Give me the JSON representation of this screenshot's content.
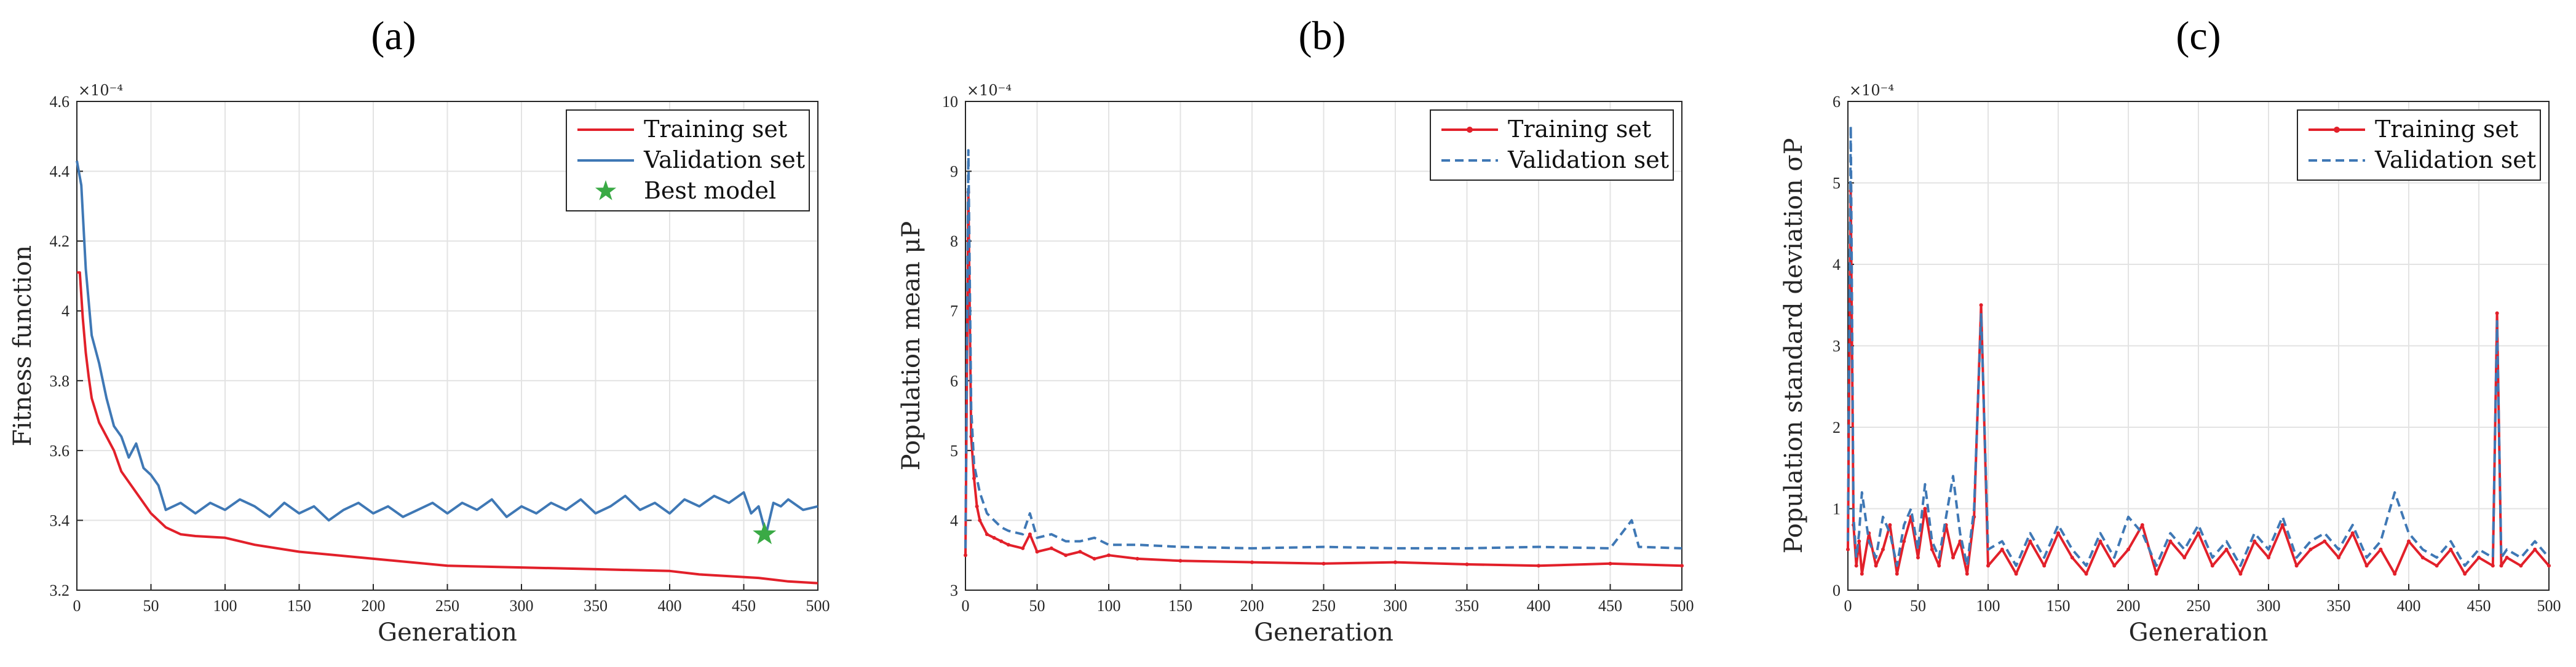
{
  "colors": {
    "training": "#e2202a",
    "validation": "#3f78b5",
    "best": "#3aaa45",
    "grid": "#e3e3e3",
    "axis": "#262626"
  },
  "chart_data": [
    {
      "panel": "(a)",
      "type": "line",
      "ylabel": "Fitness function",
      "xlabel": "Generation",
      "exponent": "×10⁻⁴",
      "xlim": [
        0,
        500
      ],
      "ylim": [
        3.2,
        4.6
      ],
      "xticks": [
        0,
        50,
        100,
        150,
        200,
        250,
        300,
        350,
        400,
        450,
        500
      ],
      "yticks": [
        3.2,
        3.4,
        3.6,
        3.8,
        4.0,
        4.2,
        4.4,
        4.6
      ],
      "ytick_labels": [
        "3.2",
        "3.4",
        "3.6",
        "3.8",
        "4",
        "4.2",
        "4.4",
        "4.6"
      ],
      "grid": true,
      "legend_position": "top-right",
      "series": [
        {
          "name": "Training set",
          "style": "solid",
          "x": [
            0,
            2,
            4,
            6,
            8,
            10,
            15,
            20,
            25,
            30,
            40,
            50,
            60,
            70,
            80,
            100,
            120,
            150,
            200,
            250,
            300,
            350,
            400,
            420,
            440,
            460,
            480,
            500
          ],
          "y": [
            4.11,
            4.11,
            3.98,
            3.88,
            3.81,
            3.75,
            3.68,
            3.64,
            3.6,
            3.54,
            3.48,
            3.42,
            3.38,
            3.36,
            3.355,
            3.35,
            3.33,
            3.31,
            3.29,
            3.27,
            3.265,
            3.26,
            3.255,
            3.245,
            3.24,
            3.235,
            3.225,
            3.22
          ]
        },
        {
          "name": "Validation set",
          "style": "solid",
          "x": [
            0,
            3,
            6,
            10,
            15,
            20,
            25,
            30,
            35,
            40,
            45,
            50,
            55,
            60,
            70,
            80,
            90,
            100,
            110,
            120,
            130,
            140,
            150,
            160,
            170,
            180,
            190,
            200,
            210,
            220,
            230,
            240,
            250,
            260,
            270,
            280,
            290,
            300,
            310,
            320,
            330,
            340,
            350,
            360,
            370,
            380,
            390,
            400,
            410,
            420,
            430,
            440,
            450,
            455,
            460,
            465,
            470,
            475,
            480,
            490,
            500
          ],
          "y": [
            4.43,
            4.36,
            4.12,
            3.93,
            3.85,
            3.75,
            3.67,
            3.64,
            3.58,
            3.62,
            3.55,
            3.53,
            3.5,
            3.43,
            3.45,
            3.42,
            3.45,
            3.43,
            3.46,
            3.44,
            3.41,
            3.45,
            3.42,
            3.44,
            3.4,
            3.43,
            3.45,
            3.42,
            3.44,
            3.41,
            3.43,
            3.45,
            3.42,
            3.45,
            3.43,
            3.46,
            3.41,
            3.44,
            3.42,
            3.45,
            3.43,
            3.46,
            3.42,
            3.44,
            3.47,
            3.43,
            3.45,
            3.42,
            3.46,
            3.44,
            3.47,
            3.45,
            3.48,
            3.42,
            3.44,
            3.36,
            3.45,
            3.44,
            3.46,
            3.43,
            3.44
          ]
        }
      ],
      "markers": [
        {
          "name": "Best model",
          "x": 464,
          "y": 3.36
        }
      ]
    },
    {
      "panel": "(b)",
      "type": "line",
      "ylabel": "Population mean μP",
      "xlabel": "Generation",
      "exponent": "×10⁻⁴",
      "xlim": [
        0,
        500
      ],
      "ylim": [
        3,
        10
      ],
      "xticks": [
        0,
        50,
        100,
        150,
        200,
        250,
        300,
        350,
        400,
        450,
        500
      ],
      "yticks": [
        3,
        4,
        5,
        6,
        7,
        8,
        9,
        10
      ],
      "ytick_labels": [
        "3",
        "4",
        "5",
        "6",
        "7",
        "8",
        "9",
        "10"
      ],
      "grid": true,
      "legend_position": "top-right",
      "series": [
        {
          "name": "Training set",
          "style": "solid-markers",
          "x": [
            0,
            2,
            4,
            6,
            8,
            10,
            15,
            20,
            25,
            30,
            40,
            45,
            50,
            60,
            70,
            80,
            90,
            100,
            120,
            150,
            200,
            250,
            300,
            350,
            400,
            450,
            500
          ],
          "y": [
            3.5,
            8.7,
            5.2,
            4.6,
            4.2,
            4.0,
            3.8,
            3.75,
            3.7,
            3.65,
            3.6,
            3.8,
            3.55,
            3.6,
            3.5,
            3.55,
            3.45,
            3.5,
            3.45,
            3.42,
            3.4,
            3.38,
            3.4,
            3.37,
            3.35,
            3.38,
            3.35
          ]
        },
        {
          "name": "Validation set",
          "style": "dashed",
          "x": [
            0,
            2,
            4,
            6,
            8,
            10,
            15,
            20,
            25,
            30,
            40,
            45,
            50,
            60,
            70,
            80,
            90,
            100,
            120,
            150,
            200,
            250,
            300,
            350,
            400,
            450,
            465,
            470,
            500
          ],
          "y": [
            3.6,
            9.3,
            5.6,
            4.8,
            4.6,
            4.4,
            4.1,
            4.0,
            3.9,
            3.85,
            3.8,
            4.1,
            3.75,
            3.8,
            3.7,
            3.7,
            3.75,
            3.65,
            3.65,
            3.62,
            3.6,
            3.62,
            3.6,
            3.6,
            3.62,
            3.6,
            4.0,
            3.62,
            3.6
          ]
        }
      ]
    },
    {
      "panel": "(c)",
      "type": "line",
      "ylabel": "Population standard deviation σP",
      "xlabel": "Generation",
      "exponent": "×10⁻⁴",
      "xlim": [
        0,
        500
      ],
      "ylim": [
        0,
        6
      ],
      "xticks": [
        0,
        50,
        100,
        150,
        200,
        250,
        300,
        350,
        400,
        450,
        500
      ],
      "yticks": [
        0,
        1,
        2,
        3,
        4,
        5,
        6
      ],
      "ytick_labels": [
        "0",
        "1",
        "2",
        "3",
        "4",
        "5",
        "6"
      ],
      "grid": true,
      "legend_position": "top-right",
      "series": [
        {
          "name": "Training set",
          "style": "solid-markers",
          "x": [
            0,
            2,
            4,
            6,
            8,
            10,
            15,
            20,
            25,
            30,
            35,
            40,
            45,
            50,
            55,
            60,
            65,
            70,
            75,
            80,
            85,
            90,
            95,
            100,
            110,
            120,
            130,
            140,
            150,
            160,
            170,
            180,
            190,
            200,
            210,
            220,
            230,
            240,
            250,
            260,
            270,
            280,
            290,
            300,
            310,
            320,
            330,
            340,
            350,
            360,
            370,
            380,
            390,
            400,
            410,
            420,
            430,
            440,
            450,
            460,
            463,
            466,
            470,
            480,
            490,
            500
          ],
          "y": [
            0.5,
            4.9,
            0.8,
            0.3,
            0.6,
            0.2,
            0.7,
            0.3,
            0.5,
            0.8,
            0.2,
            0.6,
            0.9,
            0.4,
            1.0,
            0.5,
            0.3,
            0.8,
            0.4,
            0.6,
            0.2,
            0.9,
            3.5,
            0.3,
            0.5,
            0.2,
            0.6,
            0.3,
            0.7,
            0.4,
            0.2,
            0.6,
            0.3,
            0.5,
            0.8,
            0.2,
            0.6,
            0.4,
            0.7,
            0.3,
            0.5,
            0.2,
            0.6,
            0.4,
            0.8,
            0.3,
            0.5,
            0.6,
            0.4,
            0.7,
            0.3,
            0.5,
            0.2,
            0.6,
            0.4,
            0.3,
            0.5,
            0.2,
            0.4,
            0.3,
            3.4,
            0.3,
            0.4,
            0.3,
            0.5,
            0.3
          ]
        },
        {
          "name": "Validation set",
          "style": "dashed",
          "x": [
            0,
            2,
            4,
            6,
            8,
            10,
            15,
            20,
            25,
            30,
            35,
            40,
            45,
            50,
            55,
            60,
            65,
            70,
            75,
            80,
            85,
            90,
            95,
            100,
            110,
            120,
            130,
            140,
            150,
            160,
            170,
            180,
            190,
            200,
            210,
            220,
            230,
            240,
            250,
            260,
            270,
            280,
            290,
            300,
            310,
            320,
            330,
            340,
            350,
            360,
            370,
            380,
            390,
            400,
            410,
            420,
            430,
            440,
            450,
            460,
            463,
            466,
            470,
            480,
            490,
            500
          ],
          "y": [
            0.6,
            5.7,
            0.9,
            0.4,
            0.7,
            1.2,
            0.6,
            0.4,
            0.9,
            0.7,
            0.3,
            0.8,
            1.0,
            0.5,
            1.3,
            0.6,
            0.4,
            0.9,
            1.4,
            0.7,
            0.3,
            1.0,
            3.4,
            0.5,
            0.6,
            0.3,
            0.7,
            0.4,
            0.8,
            0.5,
            0.3,
            0.7,
            0.4,
            0.9,
            0.7,
            0.3,
            0.7,
            0.5,
            0.8,
            0.4,
            0.6,
            0.3,
            0.7,
            0.5,
            0.9,
            0.4,
            0.6,
            0.7,
            0.5,
            0.8,
            0.4,
            0.6,
            1.2,
            0.7,
            0.5,
            0.4,
            0.6,
            0.3,
            0.5,
            0.4,
            3.3,
            0.4,
            0.5,
            0.4,
            0.6,
            0.4
          ]
        }
      ]
    }
  ]
}
